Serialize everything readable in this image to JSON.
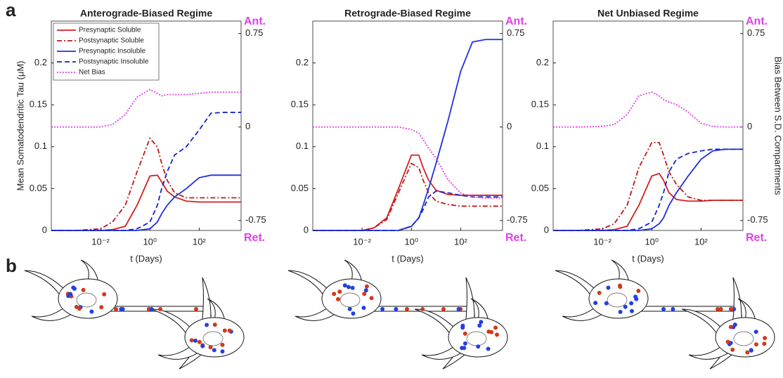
{
  "panel_labels": [
    "a",
    "b"
  ],
  "chart_data": [
    {
      "type": "line",
      "title": "Anterograde-Biased Regime",
      "xlabel": "t (Days)",
      "ylabel": "Mean Somatodendritic Tau (μM)",
      "xscale": "log",
      "xlim": [
        0.0001,
        5000
      ],
      "xticks": [
        {
          "value": 0.01,
          "label": "10⁻²"
        },
        {
          "value": 1,
          "label": "10⁰"
        },
        {
          "value": 100,
          "label": "10²"
        }
      ],
      "ylim": [
        0,
        0.25
      ],
      "yticks": [
        0,
        0.05,
        0.1,
        0.15,
        0.2
      ],
      "y2lim": [
        -0.83,
        0.85
      ],
      "y2ticks": [
        -0.75,
        0,
        0.75
      ],
      "annotations": [
        "Ant.",
        "Ret."
      ],
      "legend": "upper left",
      "x": [
        0.0001,
        0.001,
        0.01,
        0.03,
        0.1,
        0.3,
        1,
        2,
        3,
        5,
        10,
        30,
        100,
        300,
        1000,
        5000
      ],
      "series": [
        {
          "name": "Presynaptic Soluble",
          "color": "#d42020",
          "linestyle": "solid",
          "values": [
            0,
            0,
            0,
            0.001,
            0.005,
            0.03,
            0.065,
            0.066,
            0.058,
            0.047,
            0.04,
            0.035,
            0.034,
            0.034,
            0.034,
            0.034
          ]
        },
        {
          "name": "Postsynaptic Soluble",
          "color": "#c01818",
          "linestyle": "dashdot",
          "values": [
            0,
            0,
            0.002,
            0.01,
            0.03,
            0.07,
            0.11,
            0.1,
            0.08,
            0.06,
            0.045,
            0.039,
            0.039,
            0.039,
            0.039,
            0.039
          ]
        },
        {
          "name": "Presynaptic Insoluble",
          "color": "#1f2fe0",
          "linestyle": "solid",
          "values": [
            0,
            0,
            0,
            0,
            0,
            0,
            0.002,
            0.01,
            0.02,
            0.03,
            0.04,
            0.05,
            0.063,
            0.066,
            0.066,
            0.066
          ]
        },
        {
          "name": "Postsynaptic Insoluble",
          "color": "#1424c8",
          "linestyle": "dashed",
          "values": [
            0,
            0,
            0,
            0,
            0,
            0.002,
            0.01,
            0.03,
            0.05,
            0.07,
            0.09,
            0.1,
            0.12,
            0.14,
            0.141,
            0.141
          ]
        },
        {
          "name": "Net Bias",
          "color": "#e040e8",
          "linestyle": "dotted",
          "axis": "y2",
          "values": [
            0,
            0,
            0,
            0.02,
            0.1,
            0.24,
            0.3,
            0.27,
            0.25,
            0.26,
            0.26,
            0.26,
            0.27,
            0.28,
            0.28,
            0.28
          ]
        }
      ]
    },
    {
      "type": "line",
      "title": "Retrograde-Biased Regime",
      "xlabel": "t (Days)",
      "xscale": "log",
      "xlim": [
        0.0001,
        5000
      ],
      "xticks": [
        {
          "value": 0.01,
          "label": "10⁻²"
        },
        {
          "value": 1,
          "label": "10⁰"
        },
        {
          "value": 100,
          "label": "10²"
        }
      ],
      "ylim": [
        0,
        0.25
      ],
      "yticks": [
        0,
        0.05,
        0.1,
        0.15,
        0.2
      ],
      "y2lim": [
        -0.83,
        0.85
      ],
      "y2ticks": [
        -0.75,
        0,
        0.75
      ],
      "annotations": [
        "Ant.",
        "Ret."
      ],
      "x": [
        0.0001,
        0.001,
        0.01,
        0.03,
        0.1,
        0.3,
        1,
        2,
        3,
        5,
        10,
        30,
        100,
        300,
        1000,
        5000
      ],
      "series": [
        {
          "color": "#d42020",
          "linestyle": "solid",
          "values": [
            0,
            0,
            0,
            0.003,
            0.015,
            0.05,
            0.09,
            0.09,
            0.075,
            0.06,
            0.048,
            0.043,
            0.042,
            0.042,
            0.042,
            0.042
          ]
        },
        {
          "color": "#c01818",
          "linestyle": "dashdot",
          "values": [
            0,
            0,
            0,
            0.003,
            0.013,
            0.045,
            0.08,
            0.075,
            0.06,
            0.045,
            0.035,
            0.031,
            0.029,
            0.029,
            0.029,
            0.029
          ]
        },
        {
          "color": "#1f2fe0",
          "linestyle": "solid",
          "values": [
            0,
            0,
            0,
            0,
            0,
            0,
            0.005,
            0.015,
            0.03,
            0.05,
            0.08,
            0.13,
            0.19,
            0.225,
            0.228,
            0.228
          ]
        },
        {
          "color": "#1424c8",
          "linestyle": "dashed",
          "values": [
            0,
            0,
            0,
            0,
            0,
            0,
            0.005,
            0.015,
            0.025,
            0.04,
            0.047,
            0.045,
            0.042,
            0.04,
            0.04,
            0.04
          ]
        },
        {
          "color": "#e040e8",
          "linestyle": "dotted",
          "axis": "y2",
          "values": [
            0,
            0,
            0,
            0,
            0,
            0,
            -0.02,
            -0.05,
            -0.1,
            -0.17,
            -0.25,
            -0.42,
            -0.53,
            -0.56,
            -0.57,
            -0.57
          ]
        }
      ]
    },
    {
      "type": "line",
      "title": "Net Unbiased Regime",
      "xlabel": "t (Days)",
      "y2label": "Bias Between S.D. Compartments",
      "xscale": "log",
      "xlim": [
        0.0001,
        5000
      ],
      "xticks": [
        {
          "value": 0.01,
          "label": "10⁻²"
        },
        {
          "value": 1,
          "label": "10⁰"
        },
        {
          "value": 100,
          "label": "10²"
        }
      ],
      "ylim": [
        0,
        0.25
      ],
      "yticks": [
        0,
        0.05,
        0.1,
        0.15,
        0.2
      ],
      "y2lim": [
        -0.83,
        0.85
      ],
      "y2ticks": [
        -0.75,
        0,
        0.75
      ],
      "annotations": [
        "Ant.",
        "Ret."
      ],
      "x": [
        0.0001,
        0.001,
        0.01,
        0.03,
        0.1,
        0.3,
        1,
        2,
        3,
        5,
        10,
        30,
        100,
        300,
        1000,
        5000
      ],
      "series": [
        {
          "color": "#d42020",
          "linestyle": "solid",
          "values": [
            0,
            0,
            0,
            0.001,
            0.005,
            0.03,
            0.065,
            0.068,
            0.06,
            0.045,
            0.037,
            0.035,
            0.035,
            0.036,
            0.036,
            0.036
          ]
        },
        {
          "color": "#c01818",
          "linestyle": "dashdot",
          "values": [
            0,
            0,
            0.002,
            0.008,
            0.03,
            0.075,
            0.105,
            0.105,
            0.09,
            0.07,
            0.055,
            0.04,
            0.036,
            0.036,
            0.036,
            0.036
          ]
        },
        {
          "color": "#1f2fe0",
          "linestyle": "solid",
          "values": [
            0,
            0,
            0,
            0,
            0,
            0,
            0.002,
            0.008,
            0.015,
            0.03,
            0.045,
            0.065,
            0.085,
            0.095,
            0.097,
            0.097
          ]
        },
        {
          "color": "#1424c8",
          "linestyle": "dashed",
          "values": [
            0,
            0,
            0,
            0,
            0,
            0.002,
            0.01,
            0.03,
            0.045,
            0.07,
            0.085,
            0.092,
            0.095,
            0.097,
            0.097,
            0.097
          ]
        },
        {
          "color": "#e040e8",
          "linestyle": "dotted",
          "axis": "y2",
          "values": [
            0,
            0,
            0.005,
            0.02,
            0.1,
            0.25,
            0.28,
            0.25,
            0.22,
            0.2,
            0.18,
            0.12,
            0.03,
            0.005,
            0,
            0
          ]
        }
      ]
    }
  ]
}
